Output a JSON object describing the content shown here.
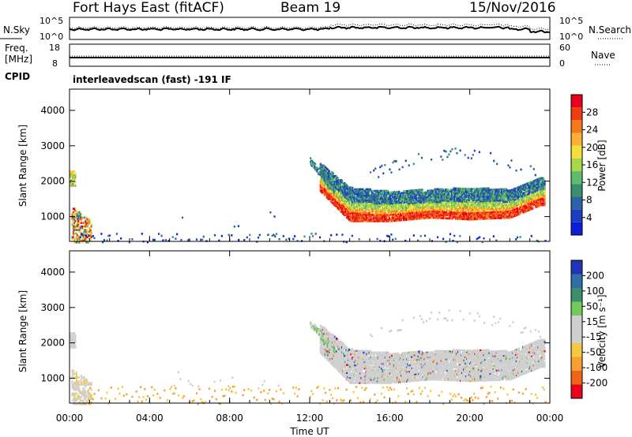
{
  "header": {
    "station": "Fort Hays East (fitACF)",
    "beam": "Beam 19",
    "date": "15/Nov/2016"
  },
  "noise_panel": {
    "left_label": "N.Sky",
    "right_label": "N.Search",
    "left_ticks": [
      "10^5",
      "10^0"
    ],
    "right_ticks": [
      "10^5",
      "10^0"
    ]
  },
  "freq_panel": {
    "left_label_1": "Freq.",
    "left_label_2": "[MHz]",
    "right_label": "Nave",
    "left_ticks": [
      "18",
      "8"
    ],
    "right_ticks": [
      "60",
      "0"
    ],
    "cpid_label": "CPID",
    "cpid_text": "interleavedscan (fast) -191 IF"
  },
  "power_panel": {
    "ylabel": "Slant Range [km]",
    "colorbar_label": "Power [dB]",
    "colorbar_ticks": [
      "28",
      "24",
      "20",
      "16",
      "12",
      "8",
      "4"
    ],
    "colors": [
      "#e8001c",
      "#f03c10",
      "#f7791e",
      "#fbb034",
      "#f2df3a",
      "#a7d84a",
      "#5fbb6e",
      "#3a8f6c",
      "#2d62a8",
      "#1b3fc2",
      "#0b1fd8"
    ]
  },
  "velocity_panel": {
    "ylabel": "Slant Range [km]",
    "colorbar_label": "Velocity [m s⁻¹]",
    "colorbar_ticks": [
      "200",
      "100",
      "50",
      "15",
      "-15",
      "-50",
      "-100",
      "-200"
    ],
    "colors": [
      "#2233b8",
      "#2f6ea8",
      "#3a8f6c",
      "#75c85b",
      "#cfcfcf",
      "#cfcfcf",
      "#f5c842",
      "#f7a030",
      "#f06418",
      "#e8001c"
    ]
  },
  "chart_data": {
    "type": "heatmap",
    "x_ticks": [
      "00:00",
      "04:00",
      "08:00",
      "12:00",
      "16:00",
      "20:00",
      "00:00"
    ],
    "xlabel": "Time UT",
    "xlim": [
      0,
      24
    ],
    "ylim": [
      300,
      4600
    ],
    "y_ticks": [
      1000,
      2000,
      3000,
      4000
    ],
    "echo_band": {
      "time_range": [
        12,
        23.7
      ],
      "lower_edge_km": [
        {
          "t": 12.5,
          "r": 1900
        },
        {
          "t": 14,
          "r": 1050
        },
        {
          "t": 16,
          "r": 1050
        },
        {
          "t": 18,
          "r": 1150
        },
        {
          "t": 20,
          "r": 1100
        },
        {
          "t": 22,
          "r": 1150
        },
        {
          "t": 23.5,
          "r": 1500
        }
      ],
      "upper_edge_km": [
        {
          "t": 12.5,
          "r": 2300
        },
        {
          "t": 14,
          "r": 1600
        },
        {
          "t": 16,
          "r": 1500
        },
        {
          "t": 18,
          "r": 1550
        },
        {
          "t": 20,
          "r": 1600
        },
        {
          "t": 22,
          "r": 1550
        },
        {
          "t": 23.5,
          "r": 1900
        }
      ]
    },
    "early_echo": {
      "time_range": [
        0,
        1
      ],
      "range_km": [
        300,
        2300
      ]
    }
  }
}
